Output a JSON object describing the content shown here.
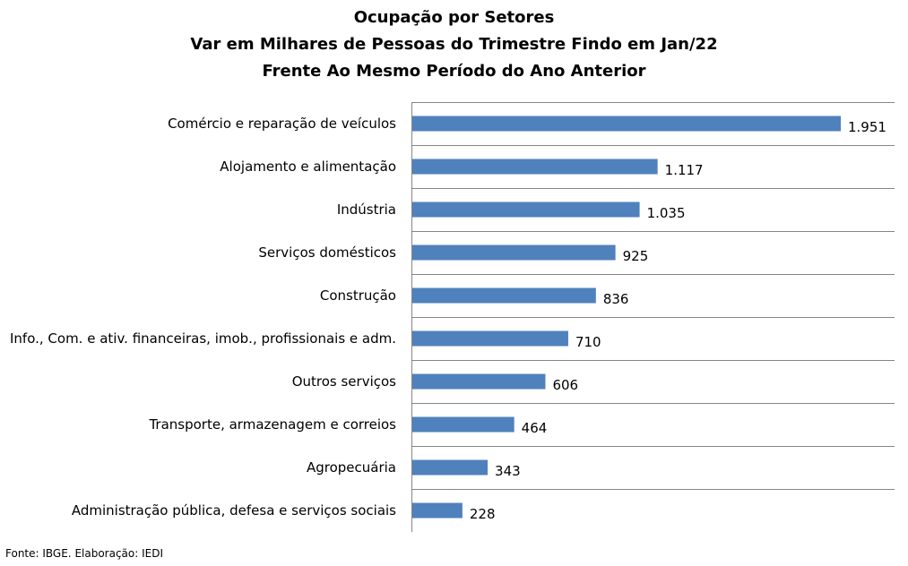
{
  "title_lines": [
    "Ocupação por Setores",
    "Var em Milhares de Pessoas do Trimestre Findo em Jan/22",
    "Frente Ao Mesmo Período do Ano Anterior"
  ],
  "source": "Fonte: IBGE. Elaboração: IEDI",
  "chart_data": {
    "type": "bar",
    "orientation": "horizontal",
    "title": "Ocupação por Setores — Var em Milhares de Pessoas do Trimestre Findo em Jan/22 Frente Ao Mesmo Período do Ano Anterior",
    "categories": [
      "Comércio e reparação de veículos",
      "Alojamento e alimentação",
      "Indústria",
      "Serviços domésticos",
      "Construção",
      "Info., Com. e ativ. financeiras, imob., profissionais e adm.",
      "Outros serviços",
      "Transporte, armazenagem e correios",
      "Agropecuária",
      "Administração pública, defesa e serviços sociais"
    ],
    "values": [
      1951,
      1117,
      1035,
      925,
      836,
      710,
      606,
      464,
      343,
      228
    ],
    "value_labels": [
      "1.951",
      "1.117",
      "1.035",
      "925",
      "836",
      "710",
      "606",
      "464",
      "343",
      "228"
    ],
    "xlim": [
      0,
      2200
    ],
    "grid": "horizontal separators",
    "bar_color": "#4f81bd",
    "grid_color": "#868686"
  }
}
